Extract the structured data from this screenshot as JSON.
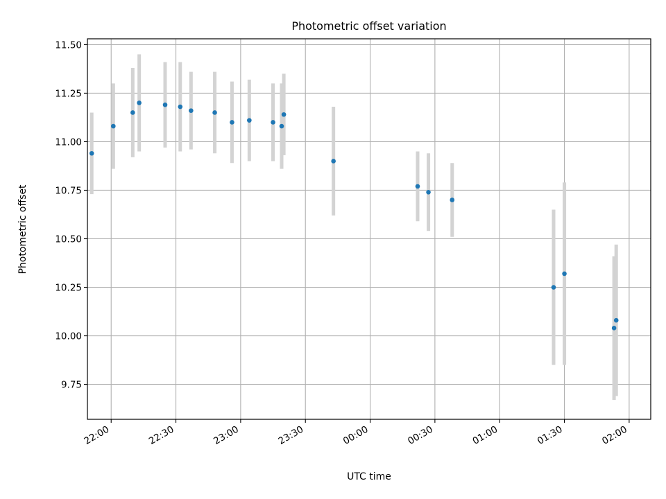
{
  "chart_data": {
    "type": "scatter",
    "title": "Photometric offset variation",
    "xlabel": "UTC time",
    "ylabel": "Photometric offset",
    "x_unit": "UTC clock time (HH:MM), date rolls over after 23:59",
    "xlim": [
      "21:49",
      "02:10"
    ],
    "ylim": [
      9.57,
      11.53
    ],
    "x_ticks": [
      "22:00",
      "22:30",
      "23:00",
      "23:30",
      "00:00",
      "00:30",
      "01:00",
      "01:30",
      "02:00"
    ],
    "y_ticks": [
      "9.75",
      "10.00",
      "10.25",
      "10.50",
      "10.75",
      "11.00",
      "11.25",
      "11.50"
    ],
    "grid": true,
    "colors": {
      "marker": "#1f77b4",
      "errorbar": "#d3d3d3",
      "grid": "#b0b0b0",
      "axes": "#000000"
    },
    "series": [
      {
        "points": [
          {
            "x": "21:51",
            "y": 10.94,
            "yerr": 0.21
          },
          {
            "x": "22:01",
            "y": 11.08,
            "yerr": 0.22
          },
          {
            "x": "22:10",
            "y": 11.15,
            "yerr": 0.23
          },
          {
            "x": "22:13",
            "y": 11.2,
            "yerr": 0.25
          },
          {
            "x": "22:25",
            "y": 11.19,
            "yerr": 0.22
          },
          {
            "x": "22:32",
            "y": 11.18,
            "yerr": 0.23
          },
          {
            "x": "22:37",
            "y": 11.16,
            "yerr": 0.2
          },
          {
            "x": "22:48",
            "y": 11.15,
            "yerr": 0.21
          },
          {
            "x": "22:56",
            "y": 11.1,
            "yerr": 0.21
          },
          {
            "x": "23:04",
            "y": 11.11,
            "yerr": 0.21
          },
          {
            "x": "23:15",
            "y": 11.1,
            "yerr": 0.2
          },
          {
            "x": "23:19",
            "y": 11.08,
            "yerr": 0.22
          },
          {
            "x": "23:20",
            "y": 11.14,
            "yerr": 0.21
          },
          {
            "x": "23:43",
            "y": 10.9,
            "yerr": 0.28
          },
          {
            "x": "00:22",
            "y": 10.77,
            "yerr": 0.18
          },
          {
            "x": "00:27",
            "y": 10.74,
            "yerr": 0.2
          },
          {
            "x": "00:38",
            "y": 10.7,
            "yerr": 0.19
          },
          {
            "x": "01:25",
            "y": 10.25,
            "yerr": 0.4
          },
          {
            "x": "01:30",
            "y": 10.32,
            "yerr": 0.47
          },
          {
            "x": "01:53",
            "y": 10.04,
            "yerr": 0.37
          },
          {
            "x": "01:54",
            "y": 10.08,
            "yerr": 0.39
          }
        ]
      }
    ]
  }
}
